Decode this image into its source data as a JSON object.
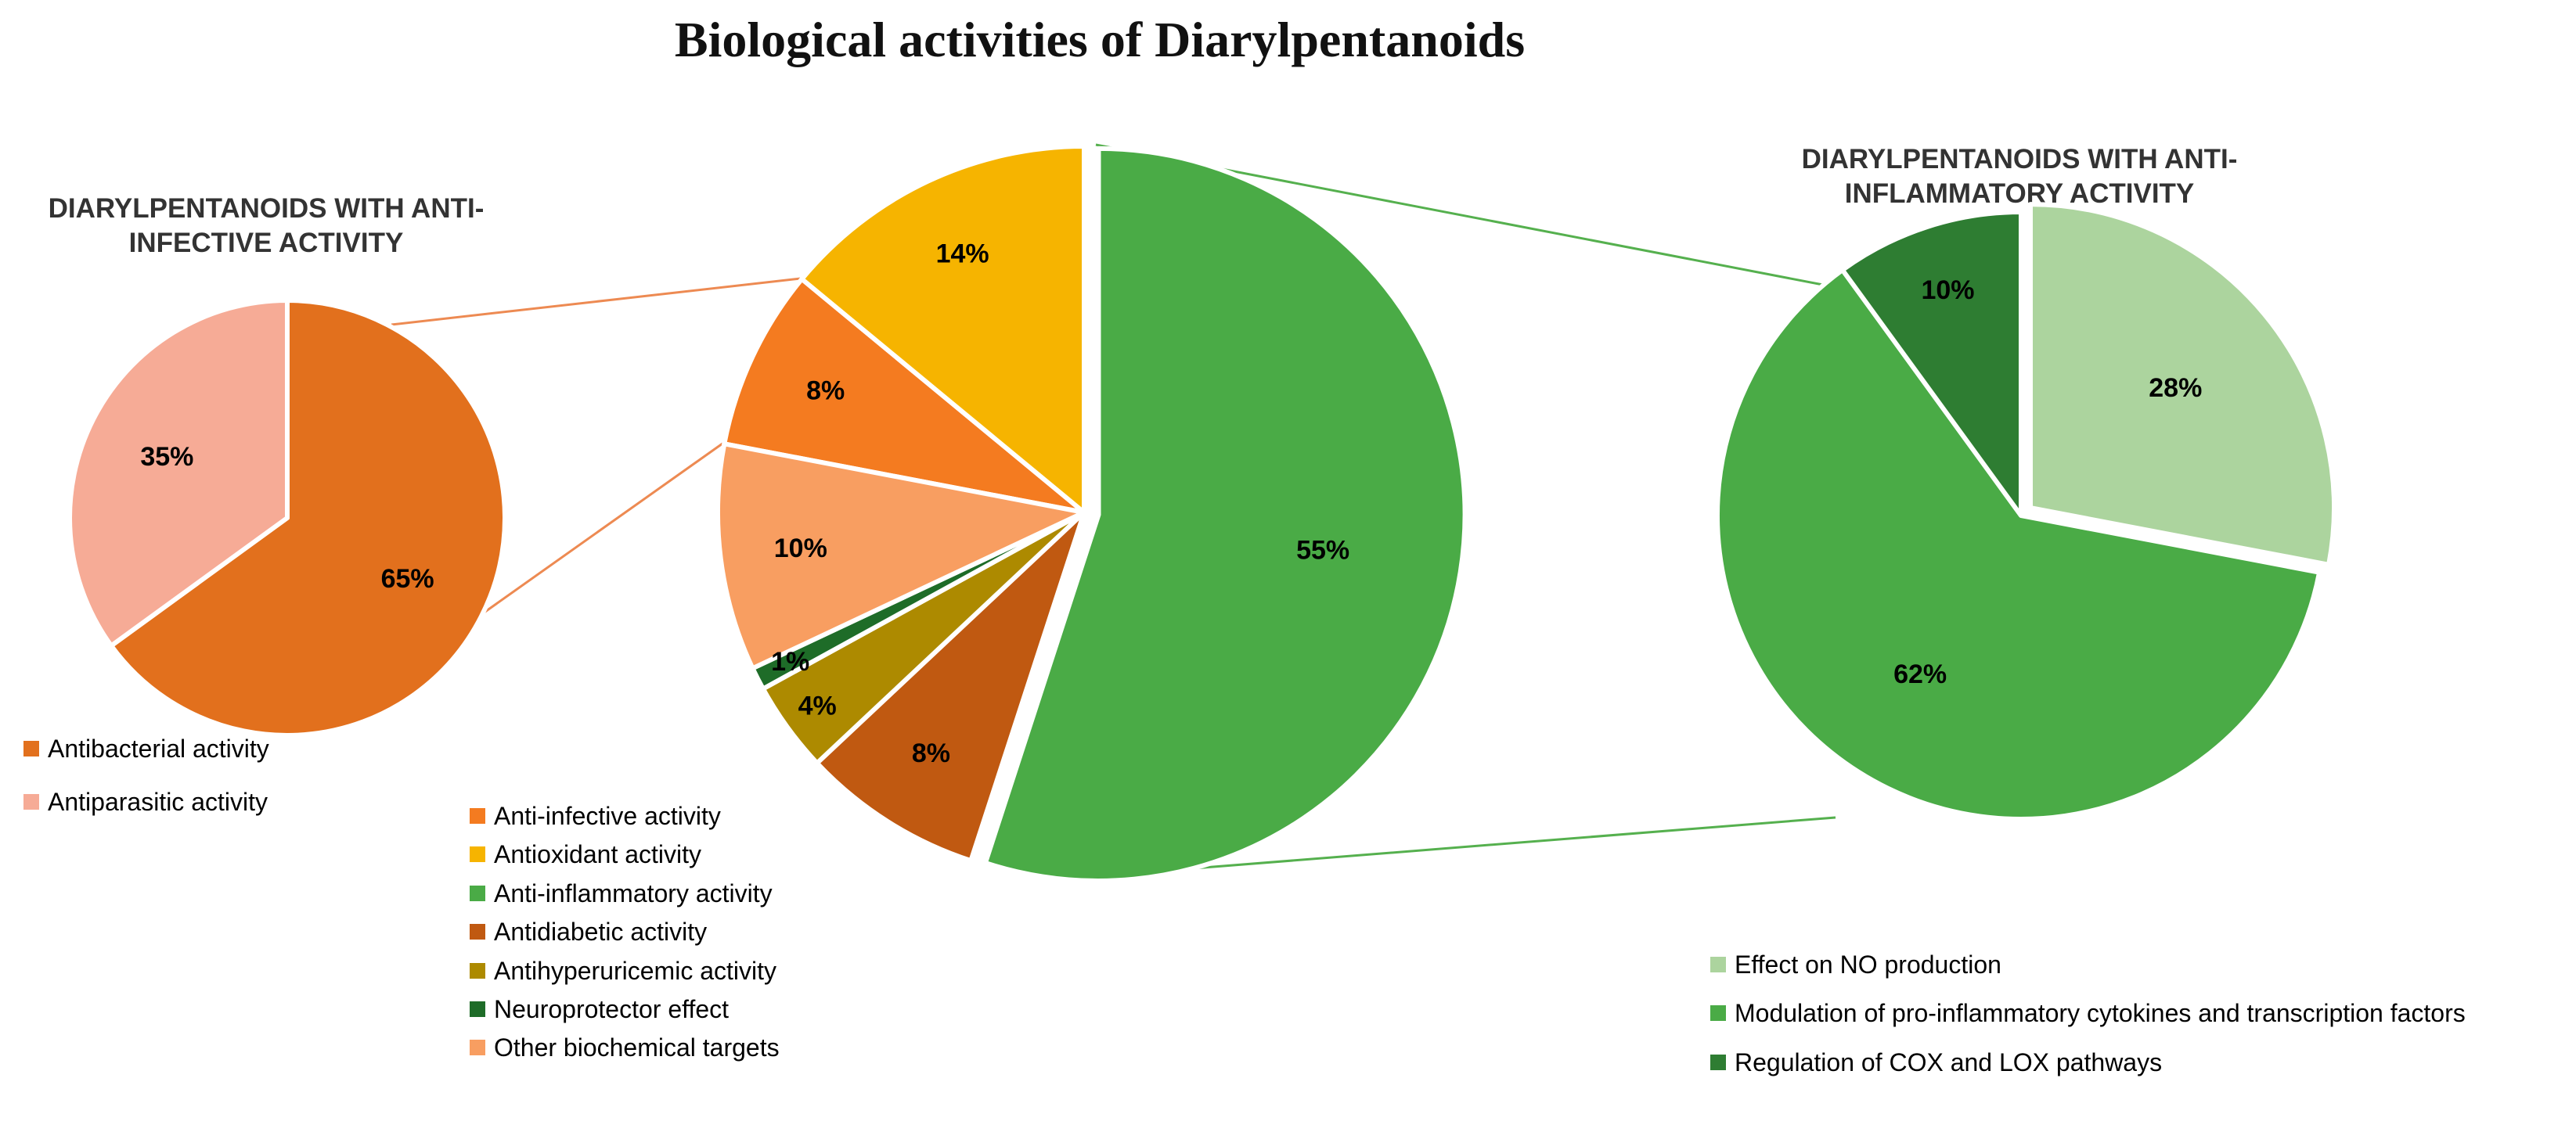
{
  "colors": {
    "background": "#FFFFFF",
    "connector_orange": "#ED8A52",
    "connector_green": "#55B04E"
  },
  "chart_data": [
    {
      "id": "anti-infective",
      "type": "pie",
      "title": "DIARYLPENTANOIDS WITH ANTI-INFECTIVE ACTIVITY",
      "rotation_deg": 0,
      "legend_position": "bottom-left",
      "slices": [
        {
          "label": "Antibacterial activity",
          "value": 65,
          "color": "#E2701D"
        },
        {
          "label": "Antiparasitic activity",
          "value": 35,
          "color": "#F6AB96"
        }
      ]
    },
    {
      "id": "main",
      "type": "pie",
      "title": "Biological activities of Diarylpentanoids",
      "rotation_deg": 280.8,
      "legend_position": "bottom",
      "slices": [
        {
          "label": "Anti-infective activity",
          "value": 8,
          "color": "#F47B20"
        },
        {
          "label": "Antioxidant activity",
          "value": 14,
          "color": "#F6B400"
        },
        {
          "label": "Anti-inflammatory activity",
          "value": 55,
          "color": "#4AAB46",
          "exploded": true
        },
        {
          "label": "Antidiabetic activity",
          "value": 8,
          "color": "#C05911"
        },
        {
          "label": "Antihyperuricemic activity",
          "value": 4,
          "color": "#AD8A00"
        },
        {
          "label": "Neuroprotector effect",
          "value": 1,
          "color": "#1E6C28"
        },
        {
          "label": "Other biochemical targets",
          "value": 10,
          "color": "#F89E61"
        }
      ]
    },
    {
      "id": "anti-inflammatory",
      "type": "pie",
      "title": "DIARYLPENTANOIDS WITH ANTI-INFLAMMATORY ACTIVITY",
      "rotation_deg": 0,
      "legend_position": "bottom-right",
      "slices": [
        {
          "label": "Effect on NO production",
          "value": 28,
          "color": "#ACD49E",
          "exploded": true
        },
        {
          "label": "Modulation of pro-inflammatory cytokines and transcription factors",
          "value": 62,
          "color": "#4AAB46"
        },
        {
          "label": "Regulation of COX and LOX pathways",
          "value": 10,
          "color": "#2E7D32"
        }
      ]
    }
  ]
}
